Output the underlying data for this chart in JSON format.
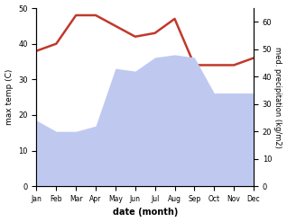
{
  "months": [
    "Jan",
    "Feb",
    "Mar",
    "Apr",
    "May",
    "Jun",
    "Jul",
    "Aug",
    "Sep",
    "Oct",
    "Nov",
    "Dec"
  ],
  "max_temp": [
    38,
    40,
    48,
    48,
    45,
    42,
    43,
    47,
    34,
    34,
    34,
    36
  ],
  "precipitation": [
    24,
    20,
    20,
    22,
    43,
    42,
    47,
    48,
    47,
    34,
    34,
    34
  ],
  "temp_ylim": [
    0,
    50
  ],
  "precip_ylim": [
    0,
    65
  ],
  "temp_color": "#c0392b",
  "precip_fill_color": "#bfc9f0",
  "ylabel_left": "max temp (C)",
  "ylabel_right": "med. precipitation (kg/m2)",
  "xlabel": "date (month)",
  "temp_yticks": [
    0,
    10,
    20,
    30,
    40,
    50
  ],
  "precip_yticks": [
    0,
    10,
    20,
    30,
    40,
    50,
    60
  ]
}
